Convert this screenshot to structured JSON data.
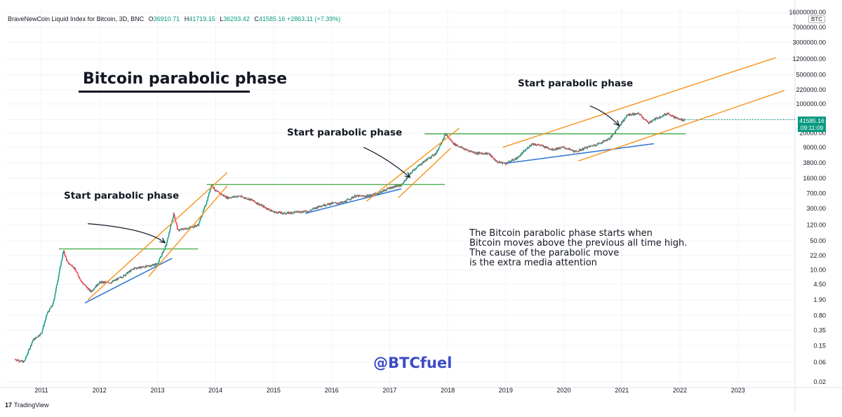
{
  "header": {
    "symbol": "BraveNewCoin Liquid Index for Bitcoin, 3D, BNC",
    "open_label": "O",
    "open": "36910.71",
    "high_label": "H",
    "high": "41719.15",
    "low_label": "L",
    "low": "36293.42",
    "close_label": "C",
    "close": "41585.16",
    "change": "+2863.11 (+7.39%)"
  },
  "title": "Bitcoin parabolic phase",
  "annotations": [
    "Start parabolic phase",
    "Start parabolic phase",
    "Start parabolic phase"
  ],
  "note_lines": [
    "The Bitcoin parabolic phase starts when",
    "Bitcoin moves above the previous all time high.",
    "The cause of the parabolic move",
    "is the extra media attention"
  ],
  "handle": "@BTCfuel",
  "price_tag": {
    "price": "41585.16",
    "countdown": "09:11:09"
  },
  "currency": "BTC",
  "footer": {
    "logo_mark": "17",
    "brand": "TradingView"
  },
  "colors": {
    "up": "#089981",
    "down": "#f23645",
    "orange": "#f7931a",
    "green": "#4caf50",
    "blue": "#3a7bd5",
    "handle": "#3d4bc7"
  },
  "chart_data": {
    "type": "line",
    "scale": "log",
    "y_tick_labels": [
      "16000000.00",
      "7000000.00",
      "3000000.00",
      "1200000.00",
      "500000.00",
      "220000.00",
      "100000.00",
      "41585.16",
      "20000.00",
      "9000.00",
      "3800.00",
      "1600.00",
      "700.00",
      "300.00",
      "120.00",
      "50.00",
      "22.00",
      "10.00",
      "4.50",
      "1.90",
      "0.80",
      "0.35",
      "0.15",
      "0.06",
      "0.02"
    ],
    "x_tick_labels": [
      "2011",
      "2012",
      "2013",
      "2014",
      "2015",
      "2016",
      "2017",
      "2018",
      "2019",
      "2020",
      "2021",
      "2022",
      "2023"
    ],
    "series": [
      {
        "x": [
          2010.55,
          2010.7,
          2010.85,
          2011.0,
          2011.1,
          2011.2,
          2011.3,
          2011.38,
          2011.45,
          2011.55,
          2011.7,
          2011.85,
          2012.0,
          2012.2,
          2012.4,
          2012.6,
          2012.8,
          2013.0,
          2013.15,
          2013.28,
          2013.35,
          2013.5,
          2013.7,
          2013.85,
          2013.93,
          2014.0,
          2014.2,
          2014.4,
          2014.6,
          2014.8,
          2015.0,
          2015.2,
          2015.4,
          2015.6,
          2015.8,
          2016.0,
          2016.2,
          2016.4,
          2016.6,
          2016.8,
          2017.0,
          2017.2,
          2017.4,
          2017.6,
          2017.8,
          2017.96,
          2018.1,
          2018.3,
          2018.5,
          2018.7,
          2018.85,
          2019.0,
          2019.2,
          2019.45,
          2019.6,
          2019.8,
          2020.0,
          2020.2,
          2020.4,
          2020.6,
          2020.8,
          2020.95,
          2021.1,
          2021.3,
          2021.45,
          2021.6,
          2021.8,
          2021.9,
          2022.0,
          2022.08
        ],
        "y": [
          0.07,
          0.06,
          0.2,
          0.3,
          0.9,
          1.5,
          8,
          29,
          15,
          12,
          5,
          3,
          5,
          5,
          7,
          11,
          12,
          14,
          40,
          230,
          90,
          100,
          120,
          450,
          1150,
          800,
          550,
          600,
          500,
          350,
          250,
          230,
          250,
          260,
          350,
          400,
          420,
          600,
          600,
          700,
          950,
          1100,
          2500,
          4200,
          6500,
          19000,
          11000,
          8000,
          6500,
          6400,
          4000,
          3700,
          5000,
          11000,
          10000,
          8000,
          9000,
          7000,
          9000,
          11000,
          15000,
          29000,
          55000,
          58000,
          35000,
          45000,
          60000,
          48000,
          42000,
          41585
        ]
      }
    ],
    "overlays": {
      "resistance_levels": [
        32,
        1150,
        19000
      ],
      "legend": "none",
      "grid": "on"
    }
  }
}
